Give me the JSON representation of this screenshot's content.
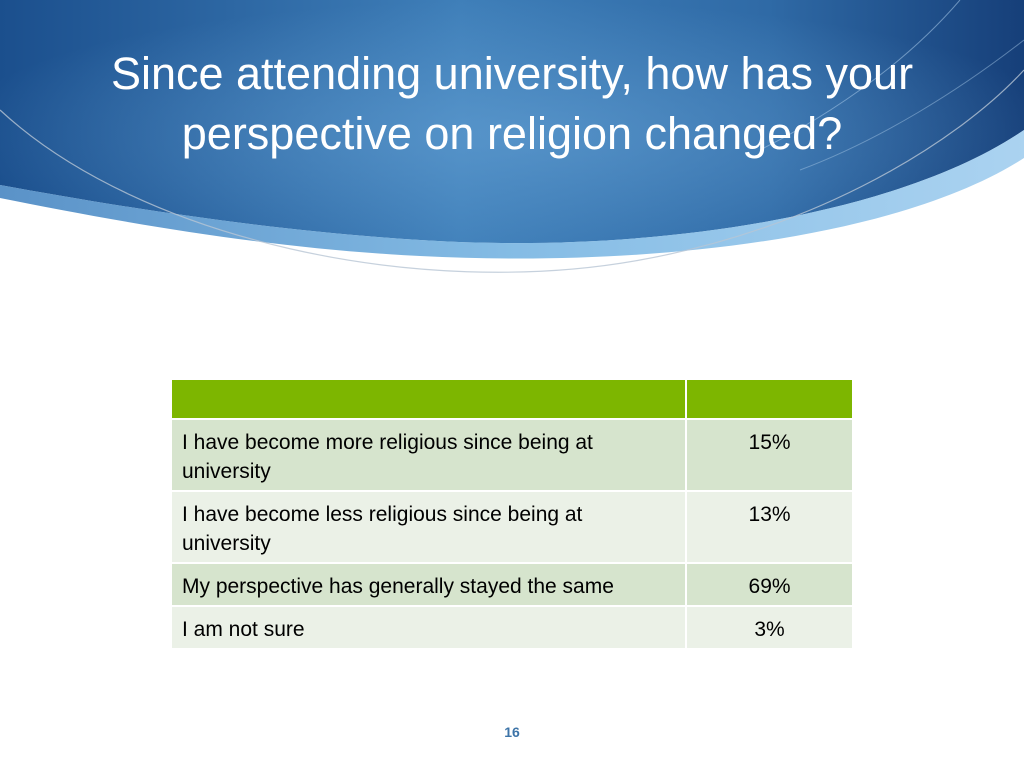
{
  "slide": {
    "title": "Since attending university, how has your perspective on religion changed?",
    "page_number": "16"
  },
  "table": {
    "header": [
      "",
      ""
    ],
    "rows": [
      {
        "label": "I have become more religious since being at university",
        "value": "15%"
      },
      {
        "label": "I have become less religious since being at university",
        "value": "13%"
      },
      {
        "label": "My perspective has generally stayed the same",
        "value": "69%"
      },
      {
        "label": "I am not sure",
        "value": "3%"
      }
    ]
  },
  "colors": {
    "header_band_dark": "#1a4a86",
    "header_band_light": "#4a8fc7",
    "table_header": "#7db600",
    "row_dark": "#d6e4cd",
    "row_light": "#ebf1e7",
    "page_number": "#3d74a8"
  }
}
